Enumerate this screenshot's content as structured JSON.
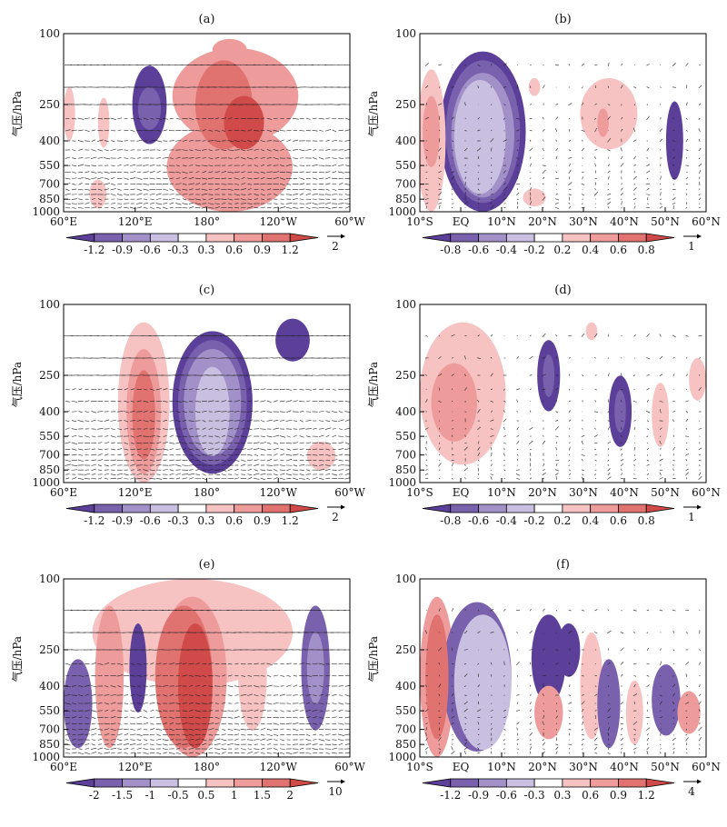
{
  "chart_data": {
    "type": "heatmap",
    "colors": {
      "neg": [
        "#5b3f99",
        "#7a61ae",
        "#a291c8",
        "#c9bfe0"
      ],
      "pos": [
        "#f7c2c2",
        "#ee9c9b",
        "#e0726f",
        "#cf4a48"
      ],
      "vector": "#222222"
    },
    "y_axis": {
      "label": "气压/hPa",
      "ticks": [
        "100",
        "250",
        "400",
        "550",
        "700",
        "850",
        "1000"
      ],
      "log_scale": true,
      "range": [
        1000,
        100
      ]
    },
    "x_axes": {
      "lon": [
        "60°E",
        "120°E",
        "180°",
        "120°W",
        "60°W"
      ],
      "lat": [
        "10°S",
        "EQ",
        "10°N",
        "20°N",
        "30°N",
        "40°N",
        "50°N",
        "60°N"
      ]
    },
    "panels": [
      {
        "id": "a",
        "label": "(a)",
        "xaxis": "lon",
        "colorbar": [
          "-1.2",
          "-0.9",
          "-0.6",
          "-0.3",
          "0.3",
          "0.6",
          "0.9",
          "1.2"
        ],
        "vector_ref": "2",
        "blobs": [
          {
            "x": 0.58,
            "y": 0.09,
            "rx": 0.06,
            "ry": 0.06,
            "v": 2
          },
          {
            "x": 0.6,
            "y": 0.35,
            "rx": 0.22,
            "ry": 0.27,
            "v": 2
          },
          {
            "x": 0.58,
            "y": 0.75,
            "rx": 0.22,
            "ry": 0.25,
            "v": 2
          },
          {
            "x": 0.56,
            "y": 0.4,
            "rx": 0.1,
            "ry": 0.25,
            "v": 3
          },
          {
            "x": 0.63,
            "y": 0.5,
            "rx": 0.07,
            "ry": 0.15,
            "v": 4
          },
          {
            "x": 0.3,
            "y": 0.4,
            "rx": 0.06,
            "ry": 0.22,
            "v": -1
          },
          {
            "x": 0.3,
            "y": 0.42,
            "rx": 0.04,
            "ry": 0.12,
            "v": -2
          },
          {
            "x": 0.14,
            "y": 0.5,
            "rx": 0.02,
            "ry": 0.14,
            "v": 1
          },
          {
            "x": 0.02,
            "y": 0.45,
            "rx": 0.02,
            "ry": 0.15,
            "v": 1
          },
          {
            "x": 0.12,
            "y": 0.9,
            "rx": 0.03,
            "ry": 0.08,
            "v": 1
          }
        ]
      },
      {
        "id": "b",
        "label": "(b)",
        "xaxis": "lat",
        "colorbar": [
          "-0.8",
          "-0.6",
          "-0.4",
          "-0.2",
          "0.2",
          "0.4",
          "0.6",
          "0.8"
        ],
        "vector_ref": "1",
        "blobs": [
          {
            "x": 0.22,
            "y": 0.55,
            "rx": 0.15,
            "ry": 0.45,
            "v": -1
          },
          {
            "x": 0.22,
            "y": 0.55,
            "rx": 0.13,
            "ry": 0.4,
            "v": -2
          },
          {
            "x": 0.22,
            "y": 0.57,
            "rx": 0.11,
            "ry": 0.35,
            "v": -3
          },
          {
            "x": 0.21,
            "y": 0.58,
            "rx": 0.09,
            "ry": 0.32,
            "v": -4
          },
          {
            "x": 0.04,
            "y": 0.6,
            "rx": 0.05,
            "ry": 0.4,
            "v": 1
          },
          {
            "x": 0.04,
            "y": 0.55,
            "rx": 0.03,
            "ry": 0.2,
            "v": 2
          },
          {
            "x": 0.66,
            "y": 0.45,
            "rx": 0.1,
            "ry": 0.2,
            "v": 1
          },
          {
            "x": 0.64,
            "y": 0.5,
            "rx": 0.02,
            "ry": 0.08,
            "v": 2
          },
          {
            "x": 0.4,
            "y": 0.3,
            "rx": 0.02,
            "ry": 0.05,
            "v": 1
          },
          {
            "x": 0.4,
            "y": 0.92,
            "rx": 0.04,
            "ry": 0.05,
            "v": 1
          },
          {
            "x": 0.89,
            "y": 0.6,
            "rx": 0.03,
            "ry": 0.22,
            "v": -1
          }
        ]
      },
      {
        "id": "c",
        "label": "(c)",
        "xaxis": "lon",
        "colorbar": [
          "-1.2",
          "-0.9",
          "-0.6",
          "-0.3",
          "0.3",
          "0.6",
          "0.9",
          "1.2"
        ],
        "vector_ref": "2",
        "blobs": [
          {
            "x": 0.28,
            "y": 0.55,
            "rx": 0.09,
            "ry": 0.45,
            "v": 1
          },
          {
            "x": 0.28,
            "y": 0.6,
            "rx": 0.06,
            "ry": 0.35,
            "v": 2
          },
          {
            "x": 0.28,
            "y": 0.62,
            "rx": 0.04,
            "ry": 0.25,
            "v": 3
          },
          {
            "x": 0.52,
            "y": 0.55,
            "rx": 0.14,
            "ry": 0.4,
            "v": -1
          },
          {
            "x": 0.52,
            "y": 0.55,
            "rx": 0.12,
            "ry": 0.35,
            "v": -2
          },
          {
            "x": 0.52,
            "y": 0.55,
            "rx": 0.1,
            "ry": 0.3,
            "v": -3
          },
          {
            "x": 0.52,
            "y": 0.6,
            "rx": 0.06,
            "ry": 0.25,
            "v": -4
          },
          {
            "x": 0.8,
            "y": 0.2,
            "rx": 0.06,
            "ry": 0.12,
            "v": -1
          },
          {
            "x": 0.9,
            "y": 0.85,
            "rx": 0.05,
            "ry": 0.08,
            "v": 1
          }
        ]
      },
      {
        "id": "d",
        "label": "(d)",
        "xaxis": "lat",
        "colorbar": [
          "-0.8",
          "-0.6",
          "-0.4",
          "-0.2",
          "0.2",
          "0.4",
          "0.6",
          "0.8"
        ],
        "vector_ref": "1",
        "blobs": [
          {
            "x": 0.15,
            "y": 0.5,
            "rx": 0.15,
            "ry": 0.4,
            "v": 1
          },
          {
            "x": 0.12,
            "y": 0.55,
            "rx": 0.08,
            "ry": 0.22,
            "v": 2
          },
          {
            "x": 0.45,
            "y": 0.4,
            "rx": 0.04,
            "ry": 0.2,
            "v": -1
          },
          {
            "x": 0.45,
            "y": 0.4,
            "rx": 0.02,
            "ry": 0.12,
            "v": -2
          },
          {
            "x": 0.7,
            "y": 0.6,
            "rx": 0.04,
            "ry": 0.2,
            "v": -1
          },
          {
            "x": 0.7,
            "y": 0.6,
            "rx": 0.02,
            "ry": 0.12,
            "v": -2
          },
          {
            "x": 0.84,
            "y": 0.62,
            "rx": 0.03,
            "ry": 0.18,
            "v": 1
          },
          {
            "x": 0.97,
            "y": 0.42,
            "rx": 0.03,
            "ry": 0.12,
            "v": 1
          },
          {
            "x": 0.6,
            "y": 0.15,
            "rx": 0.02,
            "ry": 0.05,
            "v": 1
          }
        ]
      },
      {
        "id": "e",
        "label": "(e)",
        "xaxis": "lon",
        "colorbar": [
          "-2",
          "-1.5",
          "-1",
          "-0.5",
          "0.5",
          "1",
          "1.5",
          "2"
        ],
        "vector_ref": "10",
        "blobs": [
          {
            "x": 0.45,
            "y": 0.3,
            "rx": 0.35,
            "ry": 0.3,
            "v": 1
          },
          {
            "x": 0.45,
            "y": 0.55,
            "rx": 0.12,
            "ry": 0.45,
            "v": 2
          },
          {
            "x": 0.42,
            "y": 0.55,
            "rx": 0.1,
            "ry": 0.4,
            "v": 3
          },
          {
            "x": 0.46,
            "y": 0.6,
            "rx": 0.06,
            "ry": 0.35,
            "v": 4
          },
          {
            "x": 0.16,
            "y": 0.55,
            "rx": 0.05,
            "ry": 0.4,
            "v": 2
          },
          {
            "x": 0.66,
            "y": 0.55,
            "rx": 0.05,
            "ry": 0.3,
            "v": 1
          },
          {
            "x": 0.05,
            "y": 0.7,
            "rx": 0.05,
            "ry": 0.25,
            "v": -2
          },
          {
            "x": 0.26,
            "y": 0.5,
            "rx": 0.03,
            "ry": 0.25,
            "v": -1
          },
          {
            "x": 0.88,
            "y": 0.5,
            "rx": 0.05,
            "ry": 0.35,
            "v": -2
          },
          {
            "x": 0.88,
            "y": 0.5,
            "rx": 0.03,
            "ry": 0.2,
            "v": -3
          }
        ]
      },
      {
        "id": "f",
        "label": "(f)",
        "xaxis": "lat",
        "colorbar": [
          "-1.2",
          "-0.9",
          "-0.6",
          "-0.3",
          "0.3",
          "0.6",
          "0.9",
          "1.2"
        ],
        "vector_ref": "4",
        "blobs": [
          {
            "x": 0.06,
            "y": 0.55,
            "rx": 0.06,
            "ry": 0.45,
            "v": 2
          },
          {
            "x": 0.06,
            "y": 0.55,
            "rx": 0.04,
            "ry": 0.35,
            "v": 3
          },
          {
            "x": 0.2,
            "y": 0.55,
            "rx": 0.12,
            "ry": 0.42,
            "v": -2
          },
          {
            "x": 0.22,
            "y": 0.58,
            "rx": 0.1,
            "ry": 0.38,
            "v": -4
          },
          {
            "x": 0.45,
            "y": 0.45,
            "rx": 0.06,
            "ry": 0.25,
            "v": -1
          },
          {
            "x": 0.45,
            "y": 0.75,
            "rx": 0.05,
            "ry": 0.15,
            "v": 2
          },
          {
            "x": 0.52,
            "y": 0.4,
            "rx": 0.04,
            "ry": 0.15,
            "v": -1
          },
          {
            "x": 0.6,
            "y": 0.6,
            "rx": 0.04,
            "ry": 0.3,
            "v": 1
          },
          {
            "x": 0.66,
            "y": 0.7,
            "rx": 0.04,
            "ry": 0.25,
            "v": -2
          },
          {
            "x": 0.75,
            "y": 0.75,
            "rx": 0.03,
            "ry": 0.18,
            "v": 1
          },
          {
            "x": 0.86,
            "y": 0.68,
            "rx": 0.05,
            "ry": 0.2,
            "v": -2
          },
          {
            "x": 0.94,
            "y": 0.75,
            "rx": 0.04,
            "ry": 0.12,
            "v": 2
          }
        ]
      }
    ]
  }
}
